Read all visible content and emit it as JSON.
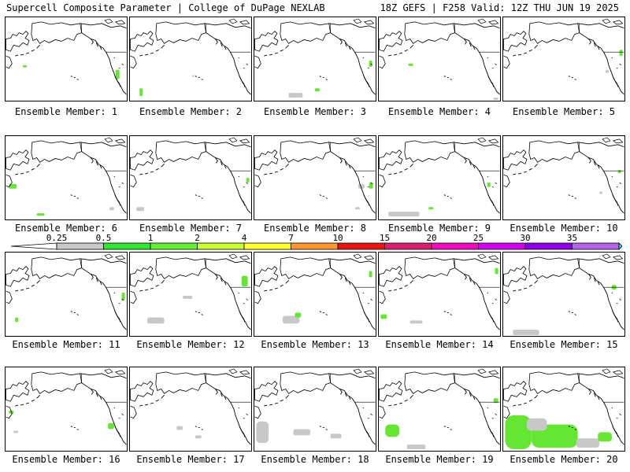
{
  "header": {
    "title_left": "Supercell Composite Parameter | College of DuPage NEXLAB",
    "title_right": "18Z GEFS | F258 Valid: 12Z THU JUN 19 2025"
  },
  "panels": [
    {
      "caption": "Ensemble Member: 1"
    },
    {
      "caption": "Ensemble Member: 2"
    },
    {
      "caption": "Ensemble Member: 3"
    },
    {
      "caption": "Ensemble Member: 4"
    },
    {
      "caption": "Ensemble Member: 5"
    },
    {
      "caption": "Ensemble Member: 6"
    },
    {
      "caption": "Ensemble Member: 7"
    },
    {
      "caption": "Ensemble Member: 8"
    },
    {
      "caption": "Ensemble Member: 9"
    },
    {
      "caption": "Ensemble Member: 10"
    },
    {
      "caption": "Ensemble Member: 11"
    },
    {
      "caption": "Ensemble Member: 12"
    },
    {
      "caption": "Ensemble Member: 13"
    },
    {
      "caption": "Ensemble Member: 14"
    },
    {
      "caption": "Ensemble Member: 15"
    },
    {
      "caption": "Ensemble Member: 16"
    },
    {
      "caption": "Ensemble Member: 17"
    },
    {
      "caption": "Ensemble Member: 18"
    },
    {
      "caption": "Ensemble Member: 19"
    },
    {
      "caption": "Ensemble Member: 20"
    }
  ],
  "colorbar": {
    "labels": [
      "0.25",
      "0.5",
      "1",
      "2",
      "4",
      "7",
      "10",
      "15",
      "20",
      "25",
      "30",
      "35"
    ],
    "colors": [
      "#c8c8c8",
      "#32e632",
      "#64f032",
      "#c8ff32",
      "#ffff32",
      "#ff9632",
      "#e61414",
      "#dc1e6e",
      "#f00abe",
      "#d200f0",
      "#8c00e6",
      "#b464e6",
      "#32e6e6"
    ]
  }
}
